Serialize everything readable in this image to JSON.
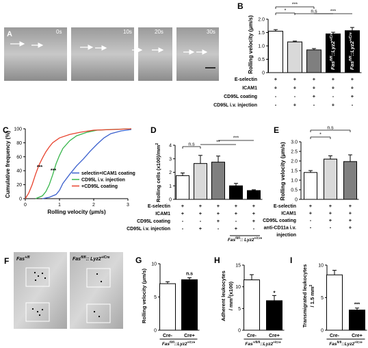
{
  "panels": {
    "A": {
      "letter": "A",
      "frame_times": [
        "0s",
        "10s",
        "20s",
        "30s"
      ]
    },
    "F": {
      "letter": "F",
      "image_labels": [
        "Fas",
        "Fas"
      ],
      "image_label_superscripts": [
        "+/fl",
        "fl/fl"
      ],
      "image_label_suffix": [
        "",
        ":: Lyz2"
      ],
      "image_label_suffix_sup": [
        "",
        "+/Cre"
      ]
    },
    "G": {
      "letter": "G"
    },
    "H": {
      "letter": "H"
    },
    "I": {
      "letter": "I"
    }
  },
  "chart_data": [
    {
      "panel": "B",
      "type": "bar",
      "ylabel": "Rolling velocity (μm/s)",
      "ylim": [
        0,
        2.0
      ],
      "yticks": [
        "0",
        "0.5",
        "1.0",
        "1.5",
        "2.0"
      ],
      "values": [
        1.55,
        1.15,
        0.85,
        1.45,
        1.57
      ],
      "errors": [
        0.06,
        0.03,
        0.05,
        0.06,
        0.12
      ],
      "colors": [
        "#ffffff",
        "#d9d9d9",
        "#7f7f7f",
        "#000000",
        "#000000"
      ],
      "bar_labels": [
        "",
        "",
        "",
        "Fas",
        "Fas"
      ],
      "rows": [
        {
          "label": "E-selectin",
          "signs": [
            "+",
            "+",
            "+",
            "+",
            "+"
          ]
        },
        {
          "label": "ICAM1",
          "signs": [
            "+",
            "+",
            "+",
            "+",
            "+"
          ]
        },
        {
          "label": "CD95L coating",
          "signs": [
            "-",
            "-",
            "+",
            "-",
            "+"
          ]
        },
        {
          "label": "CD95L i.v. injection",
          "signs": [
            "-",
            "+",
            "-",
            "+",
            "-"
          ]
        }
      ],
      "significance": [
        "*",
        "***",
        "n.s",
        "***"
      ]
    },
    {
      "panel": "C",
      "type": "line",
      "xlabel": "Rolling velocity (μm/s)",
      "ylabel": "Cumulative frequency (%)",
      "xlim": [
        0,
        3
      ],
      "ylim": [
        0,
        100
      ],
      "xticks": [
        "0",
        "1",
        "2",
        "3"
      ],
      "yticks": [
        "0",
        "20",
        "40",
        "60",
        "80",
        "100"
      ],
      "series": [
        {
          "name": "selectin+ICAM1 coating",
          "color": "#3a5fcd",
          "x": [
            0.5,
            0.7,
            0.9,
            1.0,
            1.1,
            1.3,
            1.5,
            1.7,
            1.9,
            2.1,
            2.3,
            2.5,
            2.8,
            3.1
          ],
          "y": [
            0,
            2,
            6,
            12,
            22,
            35,
            47,
            57,
            68,
            78,
            87,
            93,
            97,
            99
          ]
        },
        {
          "name": "CD95L i.v. injection",
          "color": "#36b54a",
          "x": [
            0.3,
            0.5,
            0.6,
            0.7,
            0.8,
            0.9,
            1.0,
            1.1,
            1.3,
            1.5,
            1.8,
            2.1,
            2.5,
            3.1
          ],
          "y": [
            0,
            4,
            10,
            20,
            34,
            50,
            62,
            72,
            83,
            90,
            95,
            98,
            99,
            100
          ]
        },
        {
          "name": "+CD95L coating",
          "color": "#e8412c",
          "x": [
            0.0,
            0.1,
            0.2,
            0.3,
            0.4,
            0.5,
            0.6,
            0.7,
            0.8,
            1.0,
            1.3,
            1.6,
            2.0,
            2.6,
            3.1
          ],
          "y": [
            0,
            8,
            20,
            35,
            48,
            58,
            67,
            74,
            80,
            87,
            92,
            95,
            98,
            99,
            100
          ]
        }
      ],
      "significance": [
        "***",
        "***"
      ]
    },
    {
      "panel": "D",
      "type": "bar",
      "ylabel": "Rolling cells (x100)/mm",
      "ylabel_sup": "2",
      "ylim": [
        0,
        4
      ],
      "yticks": [
        "0",
        "1",
        "2",
        "3",
        "4"
      ],
      "values": [
        1.75,
        2.65,
        2.75,
        1.0,
        0.65
      ],
      "errors": [
        0.2,
        0.6,
        0.45,
        0.18,
        0.06
      ],
      "colors": [
        "#ffffff",
        "#d9d9d9",
        "#7f7f7f",
        "#000000",
        "#000000"
      ],
      "rows": [
        {
          "label": "E-selectin",
          "signs": [
            "+",
            "+",
            "+",
            "+",
            "+"
          ]
        },
        {
          "label": "ICAM1",
          "signs": [
            "+",
            "+",
            "+",
            "+",
            "+"
          ]
        },
        {
          "label": "CD95L coating",
          "signs": [
            "-",
            "-",
            "+",
            "-",
            "+"
          ]
        },
        {
          "label": "CD95L i.v. injection",
          "signs": [
            "-",
            "+",
            "-",
            "+",
            "-"
          ]
        }
      ],
      "group_label": "Fas",
      "group_label_sup": "fl/fl",
      "group_label_suffix": ":: Lyz2",
      "group_label_suffix_sup": "+/Cre",
      "significance": [
        "n.s",
        "**",
        "***"
      ]
    },
    {
      "panel": "E",
      "type": "bar",
      "ylabel": "Rolling velocity (μm/s)",
      "ylim": [
        0,
        3.0
      ],
      "yticks": [
        "0",
        "0.5",
        "1.0",
        "1.5",
        "2.0",
        "2.5",
        "3.0"
      ],
      "values": [
        1.4,
        2.1,
        1.97
      ],
      "errors": [
        0.1,
        0.17,
        0.35
      ],
      "colors": [
        "#ffffff",
        "#d9d9d9",
        "#7f7f7f"
      ],
      "rows": [
        {
          "label": "E-selectin",
          "signs": [
            "+",
            "+",
            "+"
          ]
        },
        {
          "label": "ICAM1",
          "signs": [
            "+",
            "+",
            "+"
          ]
        },
        {
          "label": "CD95L coating",
          "signs": [
            "-",
            "+",
            "+"
          ]
        },
        {
          "label": "anti-CD11a i.v.",
          "signs": [
            "-",
            "-",
            "+"
          ]
        },
        {
          "label": "injection",
          "signs": [
            "",
            "",
            ""
          ]
        }
      ],
      "significance": [
        "*",
        "n.s"
      ]
    },
    {
      "panel": "G",
      "type": "bar",
      "ylabel": "Rolling velocity (μm/s)",
      "ylim": [
        0,
        10
      ],
      "yticks": [
        "0",
        "5",
        "10"
      ],
      "categories": [
        "Cre-",
        "Cre+"
      ],
      "values": [
        7.0,
        7.6
      ],
      "errors": [
        0.3,
        0.3
      ],
      "colors": [
        "#ffffff",
        "#000000"
      ],
      "group_label": "Fas",
      "group_label_sup": "fl/fl",
      "group_label_suffix": "::Lyz2",
      "group_label_suffix_sup": "+/Cre",
      "significance": [
        "n.s"
      ]
    },
    {
      "panel": "H",
      "type": "bar",
      "ylabel": "Adherent leukocytes",
      "ylabel2": "/ mm",
      "ylabel2_sup": "2",
      "ylabel2_suffix": "(x100)",
      "ylim": [
        0,
        15
      ],
      "yticks": [
        "0",
        "5",
        "10",
        "15"
      ],
      "categories": [
        "Cre-",
        "Cre+"
      ],
      "values": [
        11.6,
        6.8
      ],
      "errors": [
        1.2,
        1.2
      ],
      "colors": [
        "#ffffff",
        "#000000"
      ],
      "group_label": "Fas",
      "group_label_sup": "+/fl/fl",
      "group_label_suffix": "::Lyz2",
      "group_label_suffix_sup": "+/Cre",
      "significance": [
        "*"
      ]
    },
    {
      "panel": "I",
      "type": "bar",
      "ylabel": "Transmigrated leukocytes",
      "ylabel2": "/ 1.5 mm",
      "ylabel2_sup": "2",
      "ylim": [
        0,
        10
      ],
      "yticks": [
        "0",
        "5",
        "10"
      ],
      "categories": [
        "Cre-",
        "Cre+"
      ],
      "values": [
        8.5,
        3.1
      ],
      "errors": [
        0.7,
        0.3
      ],
      "colors": [
        "#ffffff",
        "#000000"
      ],
      "group_label": "Fas",
      "group_label_sup": "fl/fl",
      "group_label_suffix": "::Lyz2",
      "group_label_suffix_sup": "+/Cre",
      "significance": [
        "***"
      ]
    }
  ]
}
